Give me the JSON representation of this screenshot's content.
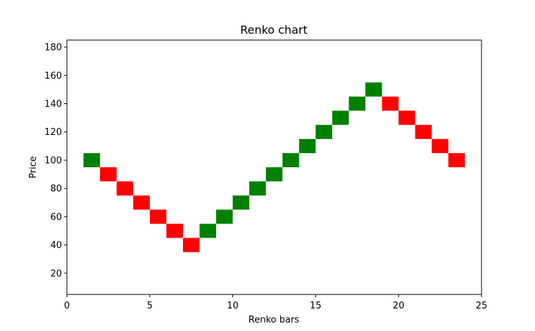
{
  "chart_data": {
    "type": "renko",
    "title": "Renko chart",
    "xlabel": "Renko bars",
    "ylabel": "Price",
    "xlim": [
      0,
      25
    ],
    "ylim": [
      5,
      185
    ],
    "xticks": [
      0,
      5,
      10,
      15,
      20,
      25
    ],
    "yticks": [
      20,
      40,
      60,
      80,
      100,
      120,
      140,
      160,
      180
    ],
    "grid": false,
    "brick_size": 10,
    "colors": {
      "up": "#008000",
      "down": "#ff0000"
    },
    "bricks": [
      {
        "x": 1,
        "low": 95,
        "high": 105,
        "direction": "up"
      },
      {
        "x": 2,
        "low": 85,
        "high": 95,
        "direction": "down"
      },
      {
        "x": 3,
        "low": 75,
        "high": 85,
        "direction": "down"
      },
      {
        "x": 4,
        "low": 65,
        "high": 75,
        "direction": "down"
      },
      {
        "x": 5,
        "low": 55,
        "high": 65,
        "direction": "down"
      },
      {
        "x": 6,
        "low": 45,
        "high": 55,
        "direction": "down"
      },
      {
        "x": 7,
        "low": 35,
        "high": 45,
        "direction": "down"
      },
      {
        "x": 8,
        "low": 45,
        "high": 55,
        "direction": "up"
      },
      {
        "x": 9,
        "low": 55,
        "high": 65,
        "direction": "up"
      },
      {
        "x": 10,
        "low": 65,
        "high": 75,
        "direction": "up"
      },
      {
        "x": 11,
        "low": 75,
        "high": 85,
        "direction": "up"
      },
      {
        "x": 12,
        "low": 85,
        "high": 95,
        "direction": "up"
      },
      {
        "x": 13,
        "low": 95,
        "high": 105,
        "direction": "up"
      },
      {
        "x": 14,
        "low": 105,
        "high": 115,
        "direction": "up"
      },
      {
        "x": 15,
        "low": 115,
        "high": 125,
        "direction": "up"
      },
      {
        "x": 16,
        "low": 125,
        "high": 135,
        "direction": "up"
      },
      {
        "x": 17,
        "low": 135,
        "high": 145,
        "direction": "up"
      },
      {
        "x": 18,
        "low": 145,
        "high": 155,
        "direction": "up"
      },
      {
        "x": 19,
        "low": 135,
        "high": 145,
        "direction": "down"
      },
      {
        "x": 20,
        "low": 125,
        "high": 135,
        "direction": "down"
      },
      {
        "x": 21,
        "low": 115,
        "high": 125,
        "direction": "down"
      },
      {
        "x": 22,
        "low": 105,
        "high": 115,
        "direction": "down"
      },
      {
        "x": 23,
        "low": 95,
        "high": 105,
        "direction": "down"
      }
    ]
  }
}
